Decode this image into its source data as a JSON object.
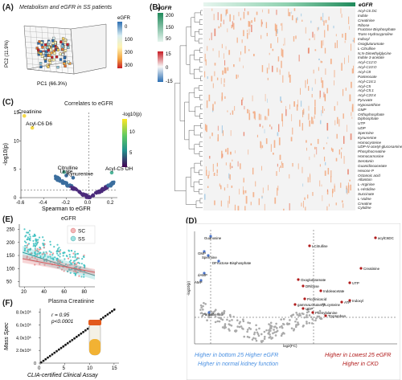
{
  "panels": {
    "a": "(A)",
    "b": "(B)",
    "c": "(C)",
    "d": "(D)",
    "e": "(E)",
    "f": "(F)"
  },
  "chart_data": [
    {
      "panel": "A",
      "type": "scatter",
      "title": "Metabolism and eGFR in SS patients",
      "xlabel": "PC1 (66.3%)",
      "ylabel": "PC2 (11.9%)",
      "colorbar": {
        "title": "eGFR",
        "ticks": [
          "0",
          "100",
          "200",
          "300"
        ],
        "colors": [
          "#2c6fb3",
          "#d9eef2",
          "#fff3b0",
          "#f4a340",
          "#c81d25"
        ]
      }
    },
    {
      "panel": "B",
      "type": "heatmap",
      "top_bar_label": "eGFR",
      "legend_top": {
        "title": "eGFR",
        "ticks": [
          "200",
          "150",
          "50"
        ]
      },
      "legend_bottom": {
        "ticks": [
          "15",
          "0",
          "-15"
        ]
      },
      "rows": [
        "Acyl-C6 DC",
        "Indole",
        "Creatinine",
        "Ribose",
        "Fructose Bisphosphate",
        "Trans-Hydroxyproline",
        "Indoxyl",
        "Oxoglutaramate",
        "L-Citrulline",
        "N,N-Dimethylglycine",
        "Indole 3-acetate",
        "Acyl-C12:O",
        "Acyl-C10:O",
        "Acyl-C8",
        "Pantenoate",
        "Acyl-C16:1",
        "Acyl-C5",
        "Acyl-C5:1",
        "Acyl-C20:4",
        "Pyruvate",
        "Hypoxanthine",
        "GMP",
        "Orthophosphate",
        "Diphosphate",
        "UTP",
        "UDP",
        "Spermine",
        "Kynurenine",
        "Homocysteine",
        "UDP-N-acetyl-glucosamine",
        "Phosphocreatine",
        "Homocarnosine",
        "Serotonin",
        "Guanidinoacetate",
        "Hexose P",
        "Octanoic acid",
        "Allantoin",
        "L-Arginine",
        "L-Histidine",
        "Succinate",
        "L-Valine",
        "Creatine",
        "Cytidine"
      ]
    },
    {
      "panel": "C",
      "type": "scatter",
      "title": "Correlates to eGFR",
      "xlabel": "Spearman to eGFR",
      "ylabel": "-log10(p)",
      "xticks": [
        "-0.6",
        "-0.4",
        "-0.2",
        "0.0",
        "0.2"
      ],
      "yticks": [
        "0",
        "5",
        "10",
        "15"
      ],
      "xlim": [
        -0.6,
        0.25
      ],
      "ylim": [
        0,
        15
      ],
      "colorbar": {
        "title": "-log10(p)",
        "ticks": [
          "10",
          "5"
        ]
      },
      "labeled_points": [
        {
          "name": "Creatinine",
          "x": -0.57,
          "y": 14.4
        },
        {
          "name": "Acyl-C6 D6",
          "x": -0.5,
          "y": 12.3
        },
        {
          "name": "Citrulline",
          "x": -0.22,
          "y": 4.5
        },
        {
          "name": "Urate",
          "x": -0.2,
          "y": 3.9
        },
        {
          "name": "Kynurenine",
          "x": -0.14,
          "y": 3.5
        },
        {
          "name": "Acyl-C5 OH",
          "x": 0.2,
          "y": 4.4
        }
      ]
    },
    {
      "panel": "D",
      "type": "scatter",
      "xlabel": "log2(FC)",
      "ylabel": "-log10(p)",
      "annotation_left": [
        "Higher in bottom 25 Higher eGFR",
        "Higher in normal kidney function"
      ],
      "annotation_right": [
        "Higher in Lowest 25 eGFR",
        "Higher in CKD"
      ],
      "labeled_points_left": [
        "Guanosine",
        "GMP",
        "Spermine",
        "DFructose-Bisphosphate",
        "dAMP",
        "AMP",
        "Pantothenate"
      ],
      "labeled_points_right": [
        "acylC6DC",
        "LCitrulline",
        "Creatinine",
        "Oxoglutaramate",
        "UTP",
        "DRibose",
        "Indoleacetate",
        "Indoxyl",
        "ATP",
        "Picolinicacid",
        "gammaLGlutamylLcysteine",
        "UDP",
        "Phenylalanine",
        "Tryptophan"
      ]
    },
    {
      "panel": "E",
      "type": "scatter",
      "title": "eGFR",
      "xticks": [
        "20",
        "40",
        "60",
        "80"
      ],
      "yticks": [
        "50",
        "100",
        "150",
        "200",
        "250"
      ],
      "series": [
        {
          "name": "SC",
          "color": "#e8888a"
        },
        {
          "name": "SS",
          "color": "#3cbfbf"
        }
      ]
    },
    {
      "panel": "F",
      "type": "scatter",
      "title": "Plasma Creatinine",
      "xlabel": "CLIA-certified Clinical Assay",
      "ylabel": "Mass Spec",
      "xticks": [
        "0",
        "5",
        "10",
        "15"
      ],
      "yticks": [
        "0",
        "2.0x10⁶",
        "4.0x10⁶",
        "6.0x10⁶",
        "8.0x10⁶"
      ],
      "stat_r": "r = 0.95",
      "stat_p": "p<0.0001"
    }
  ]
}
